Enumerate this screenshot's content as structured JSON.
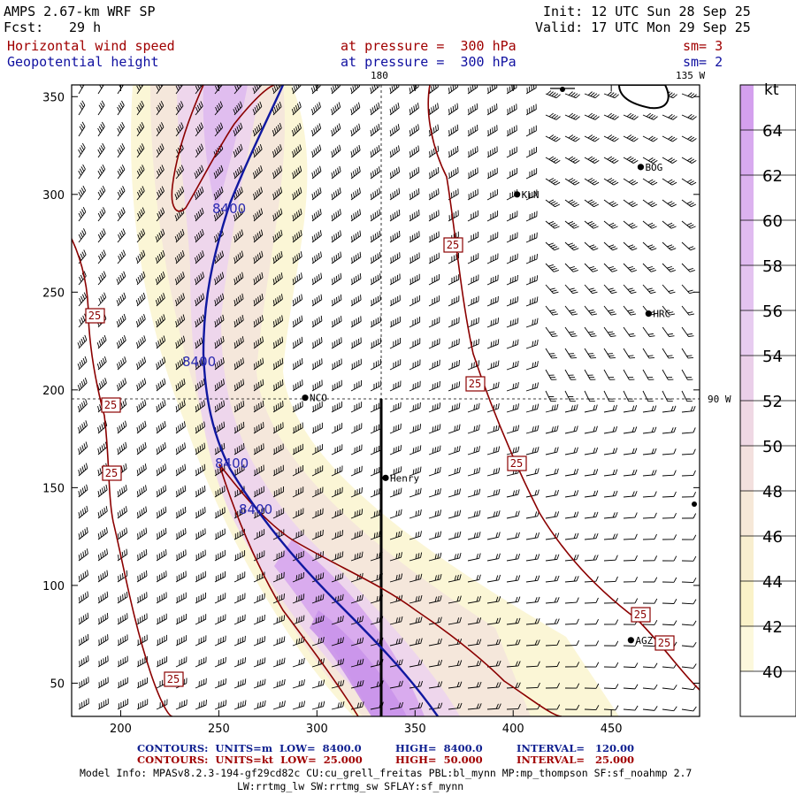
{
  "header": {
    "model_title": "AMPS 2.67-km WRF SP",
    "forecast_label": "Fcst:",
    "forecast_hours": "29 h",
    "init_line": "Init: 12 UTC Sun 28 Sep 25",
    "valid_line": "Valid: 17 UTC Mon 29 Sep 25",
    "field1_name": "Horizontal wind speed",
    "field1_level": "at pressure =  300 hPa",
    "field1_sm": "sm= 3",
    "field2_name": "Geopotential height",
    "field2_level": "at pressure =  300 hPa",
    "field2_sm": "sm= 2"
  },
  "map": {
    "lon_labels": {
      "top_180": "180",
      "top_135w": "135 W",
      "right_90w": "90 W"
    },
    "x_ticks": [
      "200",
      "250",
      "300",
      "350",
      "400",
      "450"
    ],
    "y_ticks": [
      "350",
      "300",
      "250",
      "200",
      "150",
      "100",
      "50"
    ],
    "x_tick_values": [
      200,
      250,
      300,
      350,
      400,
      450
    ],
    "y_tick_values": [
      350,
      300,
      250,
      200,
      150,
      100,
      50
    ],
    "x_range": [
      175,
      495
    ],
    "y_range": [
      33,
      356
    ],
    "stations": [
      {
        "name": "KLN",
        "x": 402,
        "y": 300
      },
      {
        "name": "BOG",
        "x": 465,
        "y": 314
      },
      {
        "name": "HRC",
        "x": 469,
        "y": 239
      },
      {
        "name": "NCO",
        "x": 294,
        "y": 196
      },
      {
        "name": "Henry",
        "x": 335,
        "y": 155
      },
      {
        "name": "AGZ",
        "x": 460,
        "y": 72
      }
    ],
    "height_contour_label": "8400",
    "wind_contour_label": "25",
    "colors": {
      "height_contour": "#1018a0",
      "wind_contour": "#8b0000",
      "shade_low": "#f8f3c4",
      "shade_high": "#cfa2e8"
    }
  },
  "colorbar": {
    "unit": "kt",
    "labels": [
      "64",
      "62",
      "60",
      "58",
      "56",
      "54",
      "52",
      "50",
      "48",
      "46",
      "44",
      "42",
      "40"
    ],
    "colors": [
      "#d4a0ee",
      "#d8aaef",
      "#dcb2ef",
      "#e0bbf0",
      "#e4c3f0",
      "#e7ccf0",
      "#eacfe9",
      "#efd8e4",
      "#f3e0de",
      "#f6e8d8",
      "#f8eecf",
      "#faf2c8",
      "#fcf8dc",
      "#ffffff"
    ]
  },
  "footer": {
    "line1_a": "CONTOURS:  UNITS=m  LOW=  8400.0",
    "line1_b": "HIGH=  8400.0",
    "line1_c": "INTERVAL=   120.00",
    "line2_a": "CONTOURS:  UNITS=kt  LOW=  25.000",
    "line2_b": "HIGH=  50.000",
    "line2_c": "INTERVAL=   25.000",
    "model_info": "Model Info: MPASv8.2.3-194-gf29cd82c CU:cu_grell_freitas PBL:bl_mynn MP:mp_thompson SF:sf_noahmp 2.7",
    "model_info2": "LW:rrtmg_lw SW:rrtmg_sw SFLAY:sf_mynn"
  }
}
